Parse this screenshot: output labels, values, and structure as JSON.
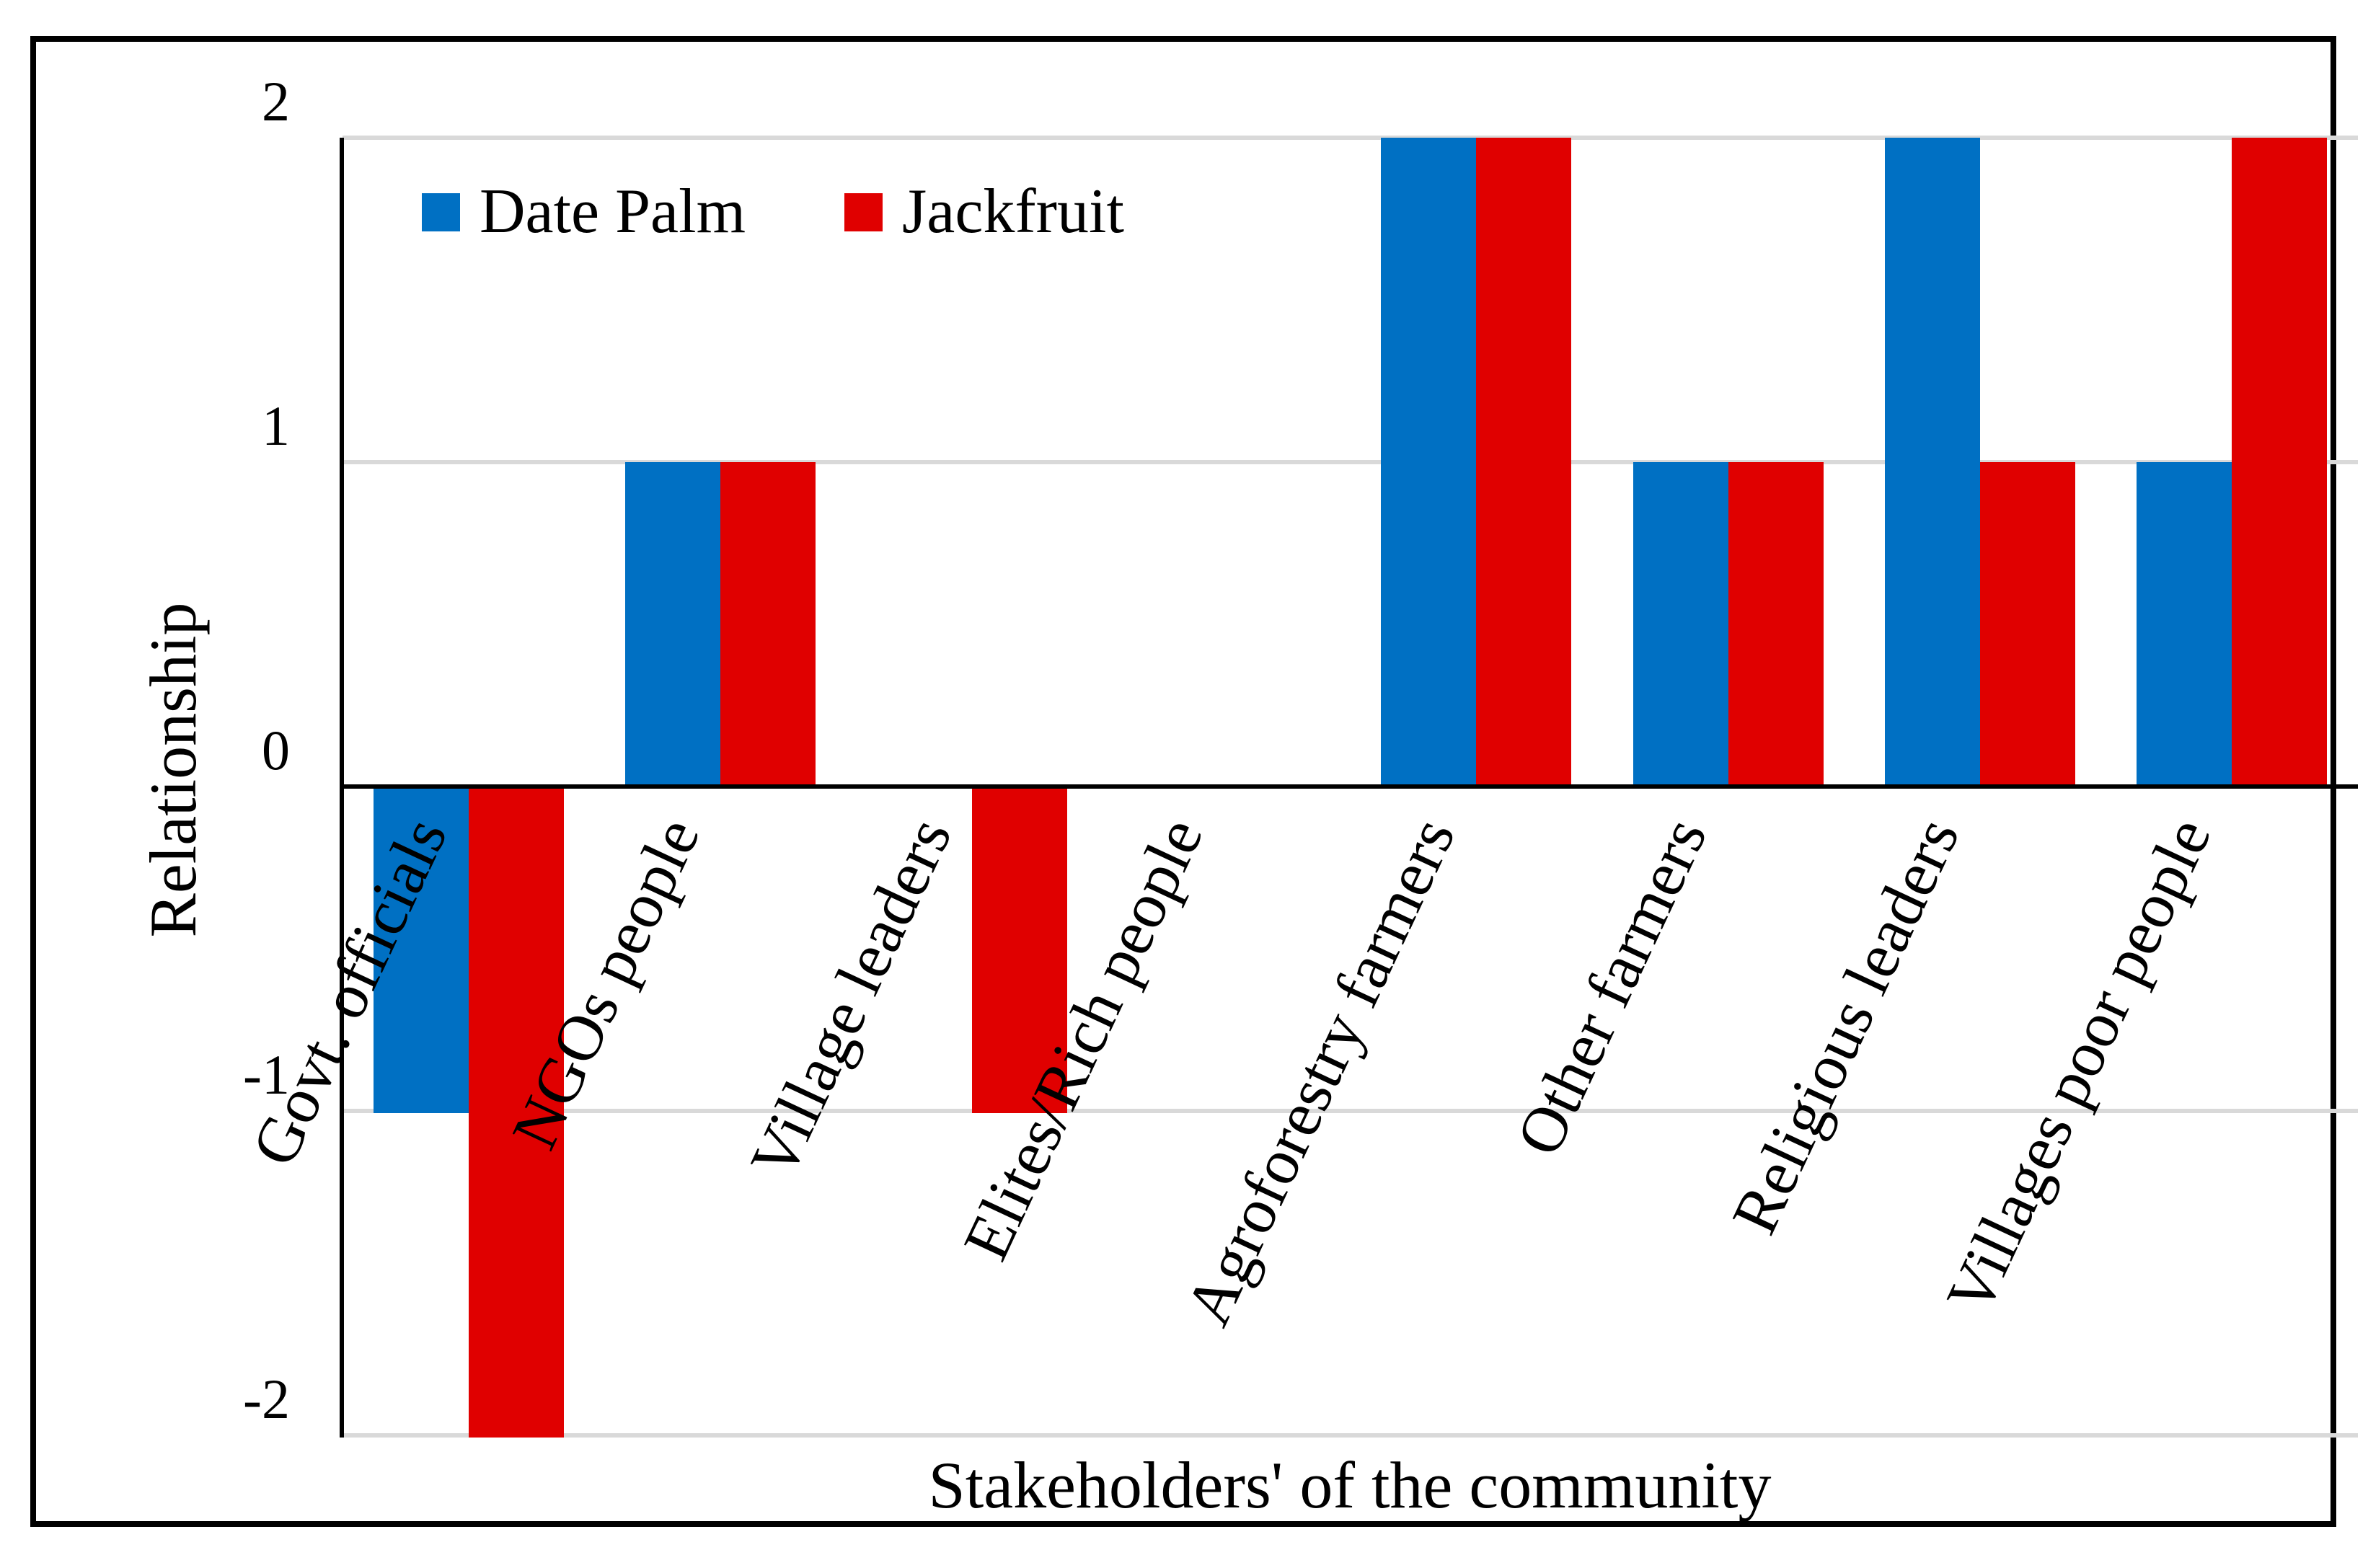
{
  "chart_data": {
    "type": "bar",
    "title": "",
    "xlabel": "Stakeholders' of the community",
    "ylabel": "Relationship",
    "categories": [
      "Govt. officials",
      "NGOs people",
      "Village leaders",
      "Elites/Rich people",
      "Agroforestry farmers",
      "Other farmers",
      "Religious leaders",
      "Villages poor people"
    ],
    "series": [
      {
        "name": "Date Palm",
        "color": "#0070C3",
        "values": [
          -1,
          1,
          0,
          0,
          2,
          1,
          2,
          1
        ]
      },
      {
        "name": "Jackfruit",
        "color": "#E00000",
        "values": [
          -2,
          1,
          -1,
          0,
          2,
          1,
          1,
          2
        ]
      }
    ],
    "ylim": [
      -2,
      2
    ],
    "yticks": [
      "2",
      "1",
      "0",
      "-1",
      "-2"
    ],
    "ytick_values": [
      2,
      1,
      0,
      -1,
      -2
    ],
    "grid": true,
    "gridline_color": "#D9D9D9",
    "axis_color": "#000000",
    "legend_position": "top-left-inside"
  }
}
